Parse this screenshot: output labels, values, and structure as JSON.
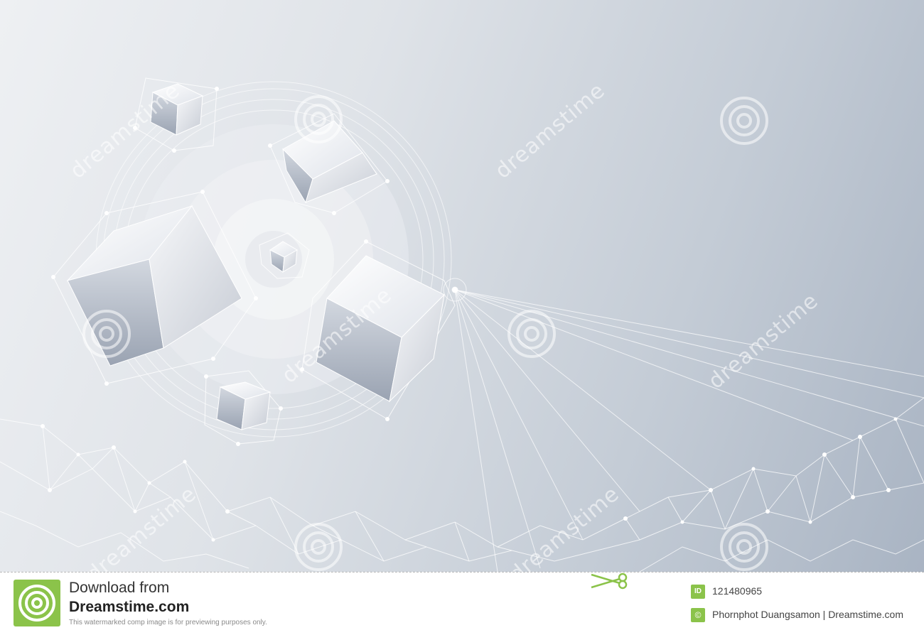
{
  "image": {
    "subject": "3D cubes with geometric network",
    "colors": {
      "background_light": "#eef0f3",
      "background_dark": "#a9b4c3",
      "cube_face": "#ffffff",
      "accent": "#8bc34a"
    }
  },
  "watermark": {
    "text": "dreamstime",
    "icon": "spiral-icon"
  },
  "footer": {
    "download_label": "Download from",
    "site": "Dreamstime.com",
    "note": "This watermarked comp image is for previewing purposes only.",
    "id_badge": "ID",
    "id_value": "121480965",
    "author_badge": "©",
    "author": "Phornphot Duangsamon | Dreamstime.com",
    "scissors_icon": "scissors-icon"
  }
}
